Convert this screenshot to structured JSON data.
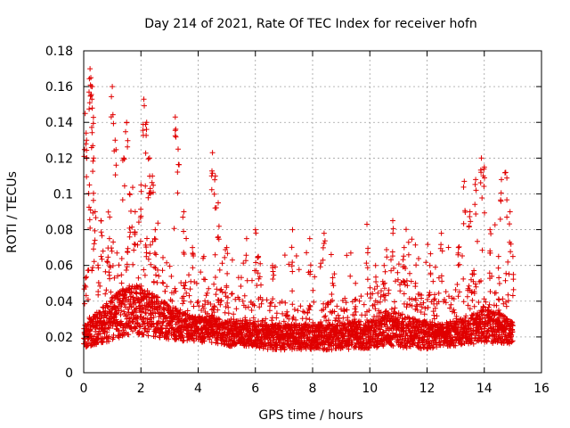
{
  "chart_data": {
    "type": "scatter",
    "title": "Day 214 of 2021, Rate Of TEC Index for receiver hofn",
    "xlabel": "GPS time / hours",
    "ylabel": "ROTI / TECUs",
    "xlim": [
      0,
      16
    ],
    "ylim": [
      0,
      0.18
    ],
    "grid": true,
    "marker": "+",
    "marker_color": "#e00000",
    "x_ticks": [
      "0",
      "2",
      "4",
      "6",
      "8",
      "10",
      "12",
      "14",
      "16"
    ],
    "y_ticks": [
      "0",
      "0.02",
      "0.04",
      "0.06",
      "0.08",
      "0.1",
      "0.12",
      "0.14",
      "0.16",
      "0.18"
    ],
    "series": [
      {
        "name": "ROTI",
        "points": [
          [
            0.05,
            0.145
          ],
          [
            0.1,
            0.13
          ],
          [
            0.2,
            0.105
          ],
          [
            0.22,
            0.17
          ],
          [
            0.25,
            0.165
          ],
          [
            0.3,
            0.16
          ],
          [
            0.3,
            0.148
          ],
          [
            0.35,
            0.12
          ],
          [
            0.4,
            0.09
          ],
          [
            0.6,
            0.085
          ],
          [
            0.9,
            0.075
          ],
          [
            1.0,
            0.16
          ],
          [
            1.1,
            0.13
          ],
          [
            1.4,
            0.12
          ],
          [
            1.5,
            0.14
          ],
          [
            1.6,
            0.1
          ],
          [
            1.8,
            0.09
          ],
          [
            2.0,
            0.105
          ],
          [
            2.1,
            0.153
          ],
          [
            2.2,
            0.14
          ],
          [
            2.3,
            0.12
          ],
          [
            2.4,
            0.11
          ],
          [
            2.5,
            0.08
          ],
          [
            3.2,
            0.143
          ],
          [
            3.3,
            0.125
          ],
          [
            3.5,
            0.09
          ],
          [
            3.8,
            0.07
          ],
          [
            4.2,
            0.065
          ],
          [
            4.5,
            0.123
          ],
          [
            4.6,
            0.11
          ],
          [
            4.7,
            0.095
          ],
          [
            5.0,
            0.07
          ],
          [
            6.0,
            0.08
          ],
          [
            6.1,
            0.065
          ],
          [
            6.6,
            0.06
          ],
          [
            7.3,
            0.08
          ],
          [
            7.9,
            0.075
          ],
          [
            8.4,
            0.078
          ],
          [
            8.7,
            0.05
          ],
          [
            9.5,
            0.05
          ],
          [
            9.9,
            0.083
          ],
          [
            10.2,
            0.06
          ],
          [
            10.5,
            0.06
          ],
          [
            10.8,
            0.085
          ],
          [
            11.2,
            0.07
          ],
          [
            11.6,
            0.05
          ],
          [
            12.1,
            0.06
          ],
          [
            12.5,
            0.078
          ],
          [
            13.1,
            0.07
          ],
          [
            13.3,
            0.107
          ],
          [
            13.5,
            0.09
          ],
          [
            13.7,
            0.108
          ],
          [
            13.9,
            0.12
          ],
          [
            14.0,
            0.115
          ],
          [
            14.2,
            0.08
          ],
          [
            14.5,
            0.065
          ],
          [
            14.6,
            0.108
          ],
          [
            14.75,
            0.112
          ],
          [
            14.9,
            0.09
          ],
          [
            15.0,
            0.065
          ]
        ],
        "envelope": {
          "description": "approximate per-hour range of the dense ROTI point cloud",
          "hours": [
            0.0,
            0.5,
            1.0,
            1.5,
            2.0,
            2.5,
            3.0,
            3.5,
            4.0,
            4.5,
            5.0,
            5.5,
            6.0,
            6.5,
            7.0,
            7.5,
            8.0,
            8.5,
            9.0,
            9.5,
            10.0,
            10.5,
            11.0,
            11.5,
            12.0,
            12.5,
            13.0,
            13.5,
            14.0,
            14.5,
            15.0
          ],
          "low": [
            0.01,
            0.01,
            0.01,
            0.012,
            0.012,
            0.012,
            0.012,
            0.012,
            0.012,
            0.012,
            0.01,
            0.01,
            0.01,
            0.008,
            0.008,
            0.008,
            0.008,
            0.008,
            0.008,
            0.008,
            0.008,
            0.008,
            0.008,
            0.008,
            0.008,
            0.01,
            0.01,
            0.01,
            0.01,
            0.01,
            0.012
          ],
          "typical": [
            0.02,
            0.025,
            0.03,
            0.035,
            0.035,
            0.032,
            0.028,
            0.026,
            0.024,
            0.024,
            0.022,
            0.022,
            0.021,
            0.02,
            0.02,
            0.02,
            0.02,
            0.02,
            0.02,
            0.021,
            0.022,
            0.025,
            0.024,
            0.022,
            0.021,
            0.021,
            0.022,
            0.024,
            0.026,
            0.025,
            0.022
          ],
          "high": [
            0.06,
            0.065,
            0.075,
            0.08,
            0.08,
            0.07,
            0.06,
            0.055,
            0.05,
            0.05,
            0.045,
            0.045,
            0.045,
            0.04,
            0.04,
            0.04,
            0.042,
            0.04,
            0.04,
            0.042,
            0.05,
            0.055,
            0.055,
            0.048,
            0.045,
            0.045,
            0.05,
            0.055,
            0.06,
            0.065,
            0.05
          ]
        }
      }
    ]
  }
}
